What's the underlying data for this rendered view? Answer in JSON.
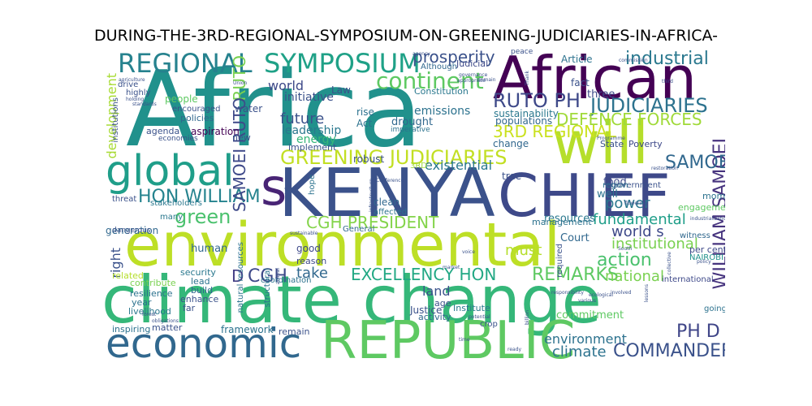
{
  "title": "DURING-THE-3RD-REGIONAL-SYMPOSIUM-ON-GREENING-JUDICIARIES-IN-AFRICA-",
  "words": [
    {
      "text": "Africa",
      "color": "#21918c"
    },
    {
      "text": "African",
      "color": "#440154"
    },
    {
      "text": "KENYA",
      "color": "#3b528b"
    },
    {
      "text": "will",
      "color": "#b5de2b"
    },
    {
      "text": "CHIEF",
      "color": "#3e4989"
    },
    {
      "text": "environmental",
      "color": "#bddf26"
    },
    {
      "text": "climate change",
      "color": "#35b779"
    },
    {
      "text": "REPUBLIC",
      "color": "#5ec962"
    },
    {
      "text": "economic",
      "color": "#31688e"
    },
    {
      "text": "global",
      "color": "#1f9e89"
    },
    {
      "text": "s",
      "color": "#482475"
    },
    {
      "text": "REGIONAL",
      "color": "#26828e"
    },
    {
      "text": "SYMPOSIUM",
      "color": "#1fa187"
    },
    {
      "text": "continent",
      "color": "#5ec962"
    },
    {
      "text": "prosperity",
      "color": "#3b528b"
    },
    {
      "text": "industrial",
      "color": "#2a788e"
    },
    {
      "text": "RUTO PH",
      "color": "#3e4989"
    },
    {
      "text": "JUDICIARIES",
      "color": "#2c728e"
    },
    {
      "text": "DEFENCE FORCES",
      "color": "#a0da39"
    },
    {
      "text": "3RD REGIONAL",
      "color": "#cae11f"
    },
    {
      "text": "GREENING JUDICIARIES",
      "color": "#c2df23"
    },
    {
      "text": "HON WILLIAM",
      "color": "#25838e"
    },
    {
      "text": "green",
      "color": "#4ac16d"
    },
    {
      "text": "CGH PRESIDENT",
      "color": "#84d44b"
    },
    {
      "text": "power",
      "color": "#2a788e"
    },
    {
      "text": "fundamental",
      "color": "#1f9e89"
    },
    {
      "text": "world s",
      "color": "#3e4989"
    },
    {
      "text": "institutional",
      "color": "#7ad151"
    },
    {
      "text": "action",
      "color": "#4ac16d"
    },
    {
      "text": "EXCELLENCY HON",
      "color": "#22a884"
    },
    {
      "text": "REMARKS",
      "color": "#5ec962"
    },
    {
      "text": "take",
      "color": "#31688e"
    },
    {
      "text": "CGH",
      "color": "#3e4989"
    },
    {
      "text": "D",
      "color": "#433e85"
    },
    {
      "text": "PH D",
      "color": "#404688"
    },
    {
      "text": "COMMANDER",
      "color": "#3b528b"
    },
    {
      "text": "climate",
      "color": "#2c728e"
    },
    {
      "text": "environment",
      "color": "#2c728e"
    },
    {
      "text": "land",
      "color": "#3b528b"
    },
    {
      "text": "national",
      "color": "#7ad151"
    },
    {
      "text": "must",
      "color": "#b5de2b"
    },
    {
      "text": "WILLIAM SAMOEI",
      "color": "#46337e"
    },
    {
      "text": "SAMOEI",
      "color": "#31688e"
    },
    {
      "text": "RUTO",
      "color": "#7ad151"
    },
    {
      "text": "SAMOEI RUTO",
      "color": "#3e4989"
    },
    {
      "text": "development",
      "color": "#a8db34"
    },
    {
      "text": "future",
      "color": "#3b528b"
    },
    {
      "text": "leadership",
      "color": "#2a788e"
    },
    {
      "text": "energy",
      "color": "#35b779"
    },
    {
      "text": "world",
      "color": "#3e4989"
    },
    {
      "text": "initiative",
      "color": "#3b528b"
    },
    {
      "text": "emissions",
      "color": "#2c728e"
    },
    {
      "text": "drought",
      "color": "#31688e"
    },
    {
      "text": "existential",
      "color": "#2a788e"
    },
    {
      "text": "sustainability",
      "color": "#2a788e"
    },
    {
      "text": "people",
      "color": "#5ec962"
    },
    {
      "text": "right",
      "color": "#3b528b"
    },
    {
      "text": "generation",
      "color": "#31688e"
    },
    {
      "text": "human",
      "color": "#31688e"
    },
    {
      "text": "resources",
      "color": "#2a788e"
    },
    {
      "text": "Court",
      "color": "#31688e"
    },
    {
      "text": "food",
      "color": "#3e4989"
    },
    {
      "text": "well",
      "color": "#2c728e"
    },
    {
      "text": "three",
      "color": "#3e4989"
    },
    {
      "text": "fact",
      "color": "#3b528b"
    },
    {
      "text": "Article",
      "color": "#2c728e"
    },
    {
      "text": "water",
      "color": "#3b528b"
    },
    {
      "text": "policies",
      "color": "#31688e"
    },
    {
      "text": "agenda",
      "color": "#3b528b"
    },
    {
      "text": "aspiration",
      "color": "#440154"
    },
    {
      "text": "threat",
      "color": "#3b528b"
    },
    {
      "text": "stakeholders",
      "color": "#2a788e"
    },
    {
      "text": "many",
      "color": "#2a788e"
    },
    {
      "text": "robust",
      "color": "#3b528b"
    },
    {
      "text": "clean",
      "color": "#31688e"
    },
    {
      "text": "affected",
      "color": "#2c728e"
    },
    {
      "text": "good",
      "color": "#3e4989"
    },
    {
      "text": "change",
      "color": "#31688e"
    },
    {
      "text": "Law",
      "color": "#3b528b"
    },
    {
      "text": "Act",
      "color": "#2c728e"
    },
    {
      "text": "rise",
      "color": "#2c728e"
    },
    {
      "text": "populations",
      "color": "#31688e"
    },
    {
      "text": "implement",
      "color": "#3b528b"
    },
    {
      "text": "new",
      "color": "#3b528b"
    },
    {
      "text": "Judicial",
      "color": "#3e4989"
    },
    {
      "text": "Although",
      "color": "#31688e"
    },
    {
      "text": "Constitution",
      "color": "#2a788e"
    },
    {
      "text": "security",
      "color": "#2a788e"
    },
    {
      "text": "lead",
      "color": "#2c728e"
    },
    {
      "text": "build",
      "color": "#31688e"
    },
    {
      "text": "resilience",
      "color": "#2c728e"
    },
    {
      "text": "enhance",
      "color": "#3b528b"
    },
    {
      "text": "livelihood",
      "color": "#2a788e"
    },
    {
      "text": "year",
      "color": "#2c728e"
    },
    {
      "text": "far",
      "color": "#3b528b"
    },
    {
      "text": "related",
      "color": "#b5de2b"
    },
    {
      "text": "contribute",
      "color": "#7ad151"
    },
    {
      "text": "inspiring",
      "color": "#2c728e"
    },
    {
      "text": "matter",
      "color": "#3b528b"
    },
    {
      "text": "framework",
      "color": "#2c728e"
    },
    {
      "text": "remain",
      "color": "#3b528b"
    },
    {
      "text": "coordination",
      "color": "#2c728e"
    },
    {
      "text": "reason",
      "color": "#3e4989"
    },
    {
      "text": "Justice",
      "color": "#3b528b"
    },
    {
      "text": "activity",
      "color": "#31688e"
    },
    {
      "text": "age",
      "color": "#3b528b"
    },
    {
      "text": "Institute",
      "color": "#2a788e"
    },
    {
      "text": "commitment",
      "color": "#5ec962"
    },
    {
      "text": "management",
      "color": "#2c728e"
    },
    {
      "text": "State",
      "color": "#3b528b"
    },
    {
      "text": "Poverty",
      "color": "#3e4989"
    },
    {
      "text": "government",
      "color": "#3b528b"
    },
    {
      "text": "region",
      "color": "#2c728e"
    },
    {
      "text": "engagement",
      "color": "#5ec962"
    },
    {
      "text": "moment",
      "color": "#2c728e"
    },
    {
      "text": "witness",
      "color": "#31688e"
    },
    {
      "text": "per cent",
      "color": "#3e4989"
    },
    {
      "text": "NAIROBI",
      "color": "#21918c"
    },
    {
      "text": "international",
      "color": "#3e4989"
    },
    {
      "text": "going",
      "color": "#2c728e"
    },
    {
      "text": "tree",
      "color": "#3b528b"
    },
    {
      "text": "hope",
      "color": "#2c728e"
    },
    {
      "text": "yet",
      "color": "#3b528b"
    },
    {
      "text": "General",
      "color": "#31688e"
    },
    {
      "text": "crop",
      "color": "#3b528b"
    },
    {
      "text": "required",
      "color": "#3b528b"
    },
    {
      "text": "natural resources",
      "color": "#2c728e"
    },
    {
      "text": "structural",
      "color": "#2c728e"
    },
    {
      "text": "encouraged",
      "color": "#3b528b"
    },
    {
      "text": "institutions",
      "color": "#3b528b"
    },
    {
      "text": "economies",
      "color": "#3b528b"
    },
    {
      "text": "dangerous",
      "color": "#3b528b"
    },
    {
      "text": "highly",
      "color": "#3b528b"
    },
    {
      "text": "drive",
      "color": "#3b528b"
    },
    {
      "text": "3RD",
      "color": "#a0da39"
    },
    {
      "text": "imperative",
      "color": "#2c728e"
    },
    {
      "text": "peace",
      "color": "#3b528b"
    },
    {
      "text": "agriculture",
      "color": "#3b528b"
    },
    {
      "text": "holding",
      "color": "#3b528b"
    },
    {
      "text": "standards",
      "color": "#3b528b"
    },
    {
      "text": "Union",
      "color": "#3b528b"
    },
    {
      "text": "Conference",
      "color": "#3b528b"
    },
    {
      "text": "infrastructure",
      "color": "#3b528b"
    },
    {
      "text": "restoration",
      "color": "#3b528b"
    },
    {
      "text": "Programme",
      "color": "#3b528b"
    },
    {
      "text": "flowering",
      "color": "#3b528b"
    },
    {
      "text": "industrialization",
      "color": "#3b528b"
    },
    {
      "text": "Thank",
      "color": "#3b528b"
    },
    {
      "text": "third",
      "color": "#3b528b"
    },
    {
      "text": "commission",
      "color": "#3b528b"
    },
    {
      "text": "agency",
      "color": "#3b528b"
    },
    {
      "text": "sustainable",
      "color": "#3b528b"
    },
    {
      "text": "South",
      "color": "#3b528b"
    },
    {
      "text": "billion",
      "color": "#3b528b"
    },
    {
      "text": "potential",
      "color": "#3b528b"
    },
    {
      "text": "responsibility",
      "color": "#3b528b"
    },
    {
      "text": "involved",
      "color": "#3b528b"
    },
    {
      "text": "ready",
      "color": "#3b528b"
    },
    {
      "text": "market",
      "color": "#3b528b"
    },
    {
      "text": "voice",
      "color": "#3b528b"
    },
    {
      "text": "policy",
      "color": "#3b528b"
    },
    {
      "text": "time",
      "color": "#3b528b"
    },
    {
      "text": "obligations",
      "color": "#3b528b"
    },
    {
      "text": "forest",
      "color": "#3b528b"
    },
    {
      "text": "animal",
      "color": "#3b528b"
    },
    {
      "text": "ecological",
      "color": "#3b528b"
    },
    {
      "text": "various",
      "color": "#3b528b"
    },
    {
      "text": "lessons",
      "color": "#3b528b"
    },
    {
      "text": "governance",
      "color": "#3b528b"
    },
    {
      "text": "collective",
      "color": "#3b528b"
    },
    {
      "text": "domain",
      "color": "#3b528b"
    },
    {
      "text": "appropriate",
      "color": "#3b528b"
    }
  ]
}
